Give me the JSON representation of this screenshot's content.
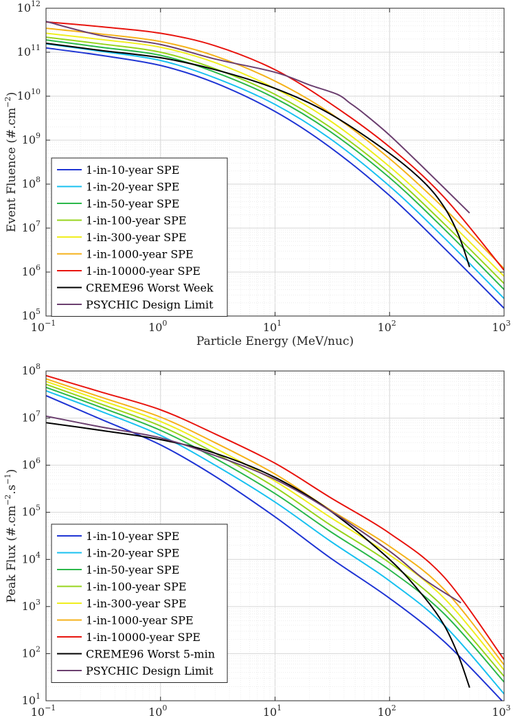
{
  "chart_data": [
    {
      "type": "line",
      "title": "",
      "xlabel": "Particle Energy (MeV/nuc)",
      "ylabel_main": "Event Fluence (#.cm",
      "ylabel_sup1": "−2",
      "ylabel_tail": ")",
      "xscale": "log",
      "yscale": "log",
      "xlim": [
        0.1,
        1000
      ],
      "ylim": [
        100000,
        1000000000000
      ],
      "grid": true,
      "legend_position": "bottom-left",
      "x_ticks": [
        {
          "base": "10",
          "exp": "−1"
        },
        {
          "base": "10",
          "exp": "0"
        },
        {
          "base": "10",
          "exp": "1"
        },
        {
          "base": "10",
          "exp": "2"
        },
        {
          "base": "10",
          "exp": "3"
        }
      ],
      "y_ticks": [
        {
          "base": "10",
          "exp": "5"
        },
        {
          "base": "10",
          "exp": "6"
        },
        {
          "base": "10",
          "exp": "7"
        },
        {
          "base": "10",
          "exp": "8"
        },
        {
          "base": "10",
          "exp": "9"
        },
        {
          "base": "10",
          "exp": "10"
        },
        {
          "base": "10",
          "exp": "11"
        },
        {
          "base": "10",
          "exp": "12"
        }
      ],
      "series": [
        {
          "name": "1-in-10-year SPE",
          "color": "#1f35d4",
          "x": [
            0.1,
            0.3,
            1,
            3,
            10,
            30,
            100,
            300,
            1000
          ],
          "y": [
            125000000000,
            85000000000,
            50000000000,
            20000000000,
            4500000000,
            700000000,
            55000000,
            3500000,
            150000
          ]
        },
        {
          "name": "1-in-20-year SPE",
          "color": "#19c1f0",
          "x": [
            0.1,
            0.3,
            1,
            3,
            10,
            30,
            100,
            300,
            1000
          ],
          "y": [
            155000000000,
            105000000000,
            65000000000,
            26000000000,
            6500000000,
            1100000000,
            90000000,
            6000000,
            250000
          ]
        },
        {
          "name": "1-in-50-year SPE",
          "color": "#2bb84a",
          "x": [
            0.1,
            0.3,
            1,
            3,
            10,
            30,
            100,
            300,
            1000
          ],
          "y": [
            190000000000,
            130000000000,
            85000000000,
            35000000000,
            9000000000,
            1600000000,
            140000000,
            9500000,
            400000
          ]
        },
        {
          "name": "1-in-100-year SPE",
          "color": "#97d41c",
          "x": [
            0.1,
            0.3,
            1,
            3,
            10,
            30,
            100,
            300,
            1000
          ],
          "y": [
            220000000000,
            155000000000,
            100000000000,
            42000000000,
            11000000000,
            2000000000,
            180000000,
            12500000,
            550000
          ]
        },
        {
          "name": "1-in-300-year SPE",
          "color": "#f0ee1e",
          "x": [
            0.1,
            0.3,
            1,
            3,
            10,
            30,
            100,
            300,
            1000
          ],
          "y": [
            270000000000,
            195000000000,
            130000000000,
            58000000000,
            15000000000,
            2800000000,
            250000000,
            18000000,
            800000
          ]
        },
        {
          "name": "1-in-1000-year SPE",
          "color": "#f5b21a",
          "x": [
            0.1,
            0.3,
            1,
            3,
            10,
            30,
            100,
            300,
            1000
          ],
          "y": [
            350000000000,
            260000000000,
            175000000000,
            82000000000,
            22000000000,
            4200000000,
            380000000,
            28000000,
            1200000
          ]
        },
        {
          "name": "1-in-10000-year SPE",
          "color": "#e8140e",
          "x": [
            0.1,
            0.3,
            1,
            3,
            10,
            30,
            100,
            300,
            1000
          ],
          "y": [
            490000000000,
            380000000000,
            270000000000,
            140000000000,
            40000000000,
            7000000000,
            700000000,
            50000000,
            1100000
          ]
        },
        {
          "name": "CREME96 Worst Week",
          "color": "#000000",
          "x": [
            0.1,
            0.3,
            1,
            3,
            10,
            30,
            100,
            200,
            300,
            400,
            500
          ],
          "y": [
            160000000000,
            110000000000,
            75000000000,
            40000000000,
            15000000000,
            4000000000,
            500000000,
            110000000,
            30000000,
            7000000,
            1300000
          ]
        },
        {
          "name": "PSYCHIC Design Limit",
          "color": "#6b3f6f",
          "x": [
            0.1,
            0.3,
            1,
            3,
            10,
            20,
            35,
            45,
            60,
            100,
            200,
            500
          ],
          "y": [
            500000000000,
            240000000000,
            150000000000,
            70000000000,
            35000000000,
            18000000000,
            11000000000,
            7000000000,
            4000000000,
            1300000000,
            230000000,
            22000000
          ]
        }
      ]
    },
    {
      "type": "line",
      "title": "",
      "xlabel": "Particle Energy (MeV/nuc)",
      "ylabel_main": "Peak Flux (#.cm",
      "ylabel_sup1": "−2",
      "ylabel_mid": ".s",
      "ylabel_sup2": "−1",
      "ylabel_tail": ")",
      "xscale": "log",
      "yscale": "log",
      "xlim": [
        0.1,
        1000
      ],
      "ylim": [
        10,
        100000000
      ],
      "grid": true,
      "legend_position": "bottom-left",
      "x_ticks": [
        {
          "base": "10",
          "exp": "−1"
        },
        {
          "base": "10",
          "exp": "0"
        },
        {
          "base": "10",
          "exp": "1"
        },
        {
          "base": "10",
          "exp": "2"
        },
        {
          "base": "10",
          "exp": "3"
        }
      ],
      "y_ticks": [
        {
          "base": "10",
          "exp": "1"
        },
        {
          "base": "10",
          "exp": "2"
        },
        {
          "base": "10",
          "exp": "3"
        },
        {
          "base": "10",
          "exp": "4"
        },
        {
          "base": "10",
          "exp": "5"
        },
        {
          "base": "10",
          "exp": "6"
        },
        {
          "base": "10",
          "exp": "7"
        },
        {
          "base": "10",
          "exp": "8"
        }
      ],
      "series": [
        {
          "name": "1-in-10-year SPE",
          "color": "#1f35d4",
          "x": [
            0.1,
            0.3,
            1,
            3,
            10,
            30,
            100,
            300,
            1000
          ],
          "y": [
            30000000,
            9500000,
            2700000,
            580000,
            80000,
            11000,
            1500,
            180,
            9
          ]
        },
        {
          "name": "1-in-20-year SPE",
          "color": "#19c1f0",
          "x": [
            0.1,
            0.3,
            1,
            3,
            10,
            30,
            100,
            300,
            1000
          ],
          "y": [
            38000000,
            14000000,
            4300000,
            1000000,
            165000,
            25000,
            3500,
            400,
            14
          ]
        },
        {
          "name": "1-in-50-year SPE",
          "color": "#2bb84a",
          "x": [
            0.1,
            0.3,
            1,
            3,
            10,
            30,
            100,
            300,
            1000
          ],
          "y": [
            45000000,
            17000000,
            5500000,
            1400000,
            250000,
            40000,
            6000,
            700,
            25
          ]
        },
        {
          "name": "1-in-100-year SPE",
          "color": "#97d41c",
          "x": [
            0.1,
            0.3,
            1,
            3,
            10,
            30,
            100,
            300,
            1000
          ],
          "y": [
            52000000,
            20000000,
            6800000,
            1800000,
            340000,
            55000,
            8500,
            950,
            33
          ]
        },
        {
          "name": "1-in-300-year SPE",
          "color": "#f0ee1e",
          "x": [
            0.1,
            0.3,
            1,
            3,
            10,
            30,
            100,
            300,
            1000
          ],
          "y": [
            60000000,
            24000000,
            8500000,
            2300000,
            460000,
            80000,
            12500,
            1500,
            45
          ]
        },
        {
          "name": "1-in-1000-year SPE",
          "color": "#f5b21a",
          "x": [
            0.1,
            0.3,
            1,
            3,
            10,
            30,
            100,
            300,
            1000
          ],
          "y": [
            68000000,
            28000000,
            10500000,
            3000000,
            650000,
            115000,
            19000,
            2300,
            58
          ]
        },
        {
          "name": "1-in-10000-year SPE",
          "color": "#e8140e",
          "x": [
            0.1,
            0.3,
            1,
            3,
            10,
            30,
            100,
            300,
            1000
          ],
          "y": [
            80000000,
            36000000,
            15000000,
            4600000,
            1100000,
            210000,
            36000,
            4200,
            75
          ]
        },
        {
          "name": "CREME96 Worst 5-min",
          "color": "#000000",
          "x": [
            0.1,
            0.3,
            1,
            3,
            10,
            30,
            100,
            200,
            300,
            400,
            500
          ],
          "y": [
            8000000,
            5500000,
            3500000,
            1800000,
            550000,
            110000,
            10000,
            1600,
            400,
            90,
            19
          ]
        },
        {
          "name": "PSYCHIC Design Limit",
          "color": "#6b3f6f",
          "x": [
            0.1,
            0.3,
            1,
            3,
            10,
            30,
            100,
            200,
            420
          ],
          "y": [
            11000000,
            6500000,
            3800000,
            1600000,
            500000,
            110000,
            15000,
            3800,
            1200
          ]
        }
      ]
    }
  ]
}
